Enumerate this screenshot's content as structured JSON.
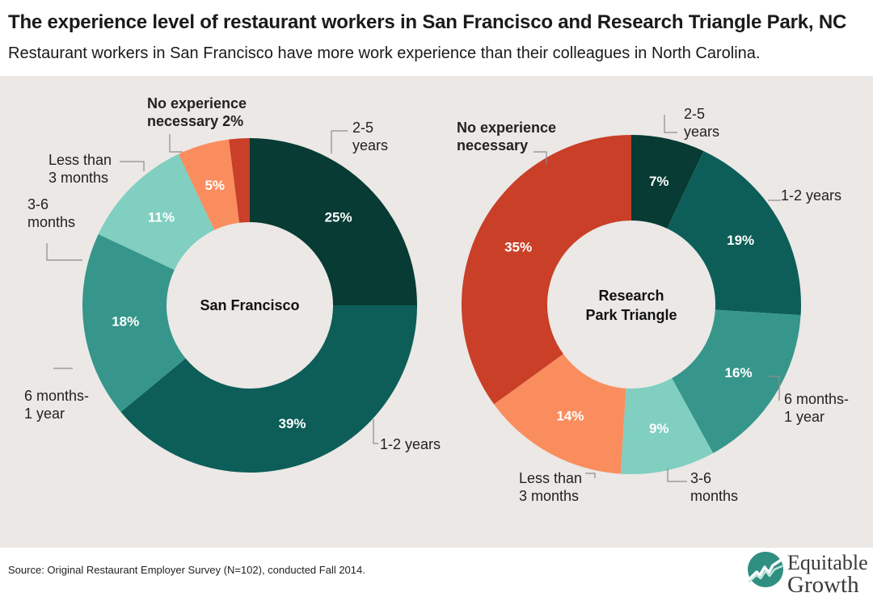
{
  "title": "The experience level of restaurant workers in San Francisco and Research Triangle Park, NC",
  "subtitle": "Restaurant workers in San Francisco have more work experience than their colleagues in North Carolina.",
  "source": "Source: Original Restaurant Employer Survey (N=102), conducted Fall 2014.",
  "logo": {
    "line1": "Equitable",
    "line2": "Growth"
  },
  "colors": {
    "background_plot": "#ebe8e6",
    "2-5 years": "#073b33",
    "1-2 years": "#0d5e58",
    "6 months-1 year": "#36968b",
    "3-6 months": "#80cfc1",
    "Less than 3 months": "#fa8d5e",
    "No experience necessary": "#c93f27"
  },
  "chart_data": [
    {
      "type": "pie",
      "donut": true,
      "center_label": [
        "San Francisco"
      ],
      "slices": [
        {
          "category": "2-5 years",
          "value": 25,
          "value_label": "25%",
          "label_lines": [
            "2-5",
            "years"
          ],
          "color": "#073b33"
        },
        {
          "category": "1-2 years",
          "value": 39,
          "value_label": "39%",
          "label_lines": [
            "1-2 years"
          ],
          "color": "#0d5e58"
        },
        {
          "category": "6 months-1 year",
          "value": 18,
          "value_label": "18%",
          "label_lines": [
            "6 months-",
            "1 year"
          ],
          "color": "#36968b"
        },
        {
          "category": "3-6 months",
          "value": 11,
          "value_label": "11%",
          "label_lines": [
            "3-6",
            "months"
          ],
          "color": "#80cfc1"
        },
        {
          "category": "Less than 3 months",
          "value": 5,
          "value_label": "5%",
          "label_lines": [
            "Less than",
            "3 months"
          ],
          "color": "#fa8d5e"
        },
        {
          "category": "No experience necessary",
          "value": 2,
          "value_label": "",
          "label_lines": [
            "No experience",
            "necessary 2%"
          ],
          "label_bold": true,
          "color": "#c93f27"
        }
      ]
    },
    {
      "type": "pie",
      "donut": true,
      "center_label": [
        "Research",
        "Park Triangle"
      ],
      "slices": [
        {
          "category": "2-5 years",
          "value": 7,
          "value_label": "7%",
          "label_lines": [
            "2-5",
            "years"
          ],
          "color": "#073b33"
        },
        {
          "category": "1-2 years",
          "value": 19,
          "value_label": "19%",
          "label_lines": [
            "1-2 years"
          ],
          "color": "#0d5e58"
        },
        {
          "category": "6 months-1 year",
          "value": 16,
          "value_label": "16%",
          "label_lines": [
            "6 months-",
            "1 year"
          ],
          "color": "#36968b"
        },
        {
          "category": "3-6 months",
          "value": 9,
          "value_label": "9%",
          "label_lines": [
            "3-6",
            "months"
          ],
          "color": "#80cfc1"
        },
        {
          "category": "Less than 3 months",
          "value": 14,
          "value_label": "14%",
          "label_lines": [
            "Less than",
            "3 months"
          ],
          "color": "#fa8d5e"
        },
        {
          "category": "No experience necessary",
          "value": 35,
          "value_label": "35%",
          "label_lines": [
            "No experience",
            "necessary"
          ],
          "label_bold": true,
          "color": "#c93f27"
        }
      ]
    }
  ]
}
